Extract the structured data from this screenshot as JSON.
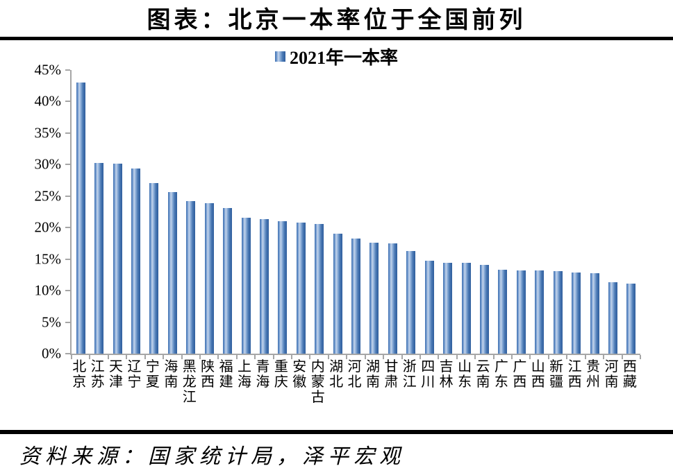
{
  "title": "图表：北京一本率位于全国前列",
  "source_note": "资料来源：国家统计局，泽平宏观",
  "colors": {
    "axis": "#A6A6A6",
    "text": "#000000",
    "rule": "#000000",
    "bar_gradient": [
      "#3E6FB0",
      "#6C96CC",
      "#C4D4EB",
      "#8FB0DA",
      "#4A79B4",
      "#2E5D9D"
    ]
  },
  "chart_data": {
    "type": "bar",
    "title": "图表：北京一本率位于全国前列",
    "legend_entries": [
      "2021年一本率"
    ],
    "legend_position": "top-center",
    "unit": "percent",
    "grid": false,
    "xlabel": "",
    "ylabel": "",
    "ylim": [
      0,
      45
    ],
    "ytick_step": 5,
    "ytick_labels": [
      "0%",
      "5%",
      "10%",
      "15%",
      "20%",
      "25%",
      "30%",
      "35%",
      "40%",
      "45%"
    ],
    "categories": [
      "北京",
      "江苏",
      "天津",
      "辽宁",
      "宁夏",
      "海南",
      "黑龙江",
      "陕西",
      "福建",
      "上海",
      "青海",
      "重庆",
      "安徽",
      "内蒙古",
      "湖北",
      "河北",
      "湖南",
      "甘肃",
      "浙江",
      "四川",
      "吉林",
      "山东",
      "云南",
      "广东",
      "广西",
      "山西",
      "新疆",
      "江西",
      "贵州",
      "河南",
      "西藏"
    ],
    "values": [
      43.0,
      30.3,
      30.1,
      29.4,
      27.1,
      25.6,
      24.2,
      23.9,
      23.1,
      21.6,
      21.3,
      21.0,
      20.8,
      20.6,
      19.0,
      18.3,
      17.6,
      17.5,
      16.3,
      14.7,
      14.4,
      14.4,
      14.1,
      13.3,
      13.2,
      13.2,
      13.1,
      12.9,
      12.8,
      11.3,
      11.1
    ]
  }
}
